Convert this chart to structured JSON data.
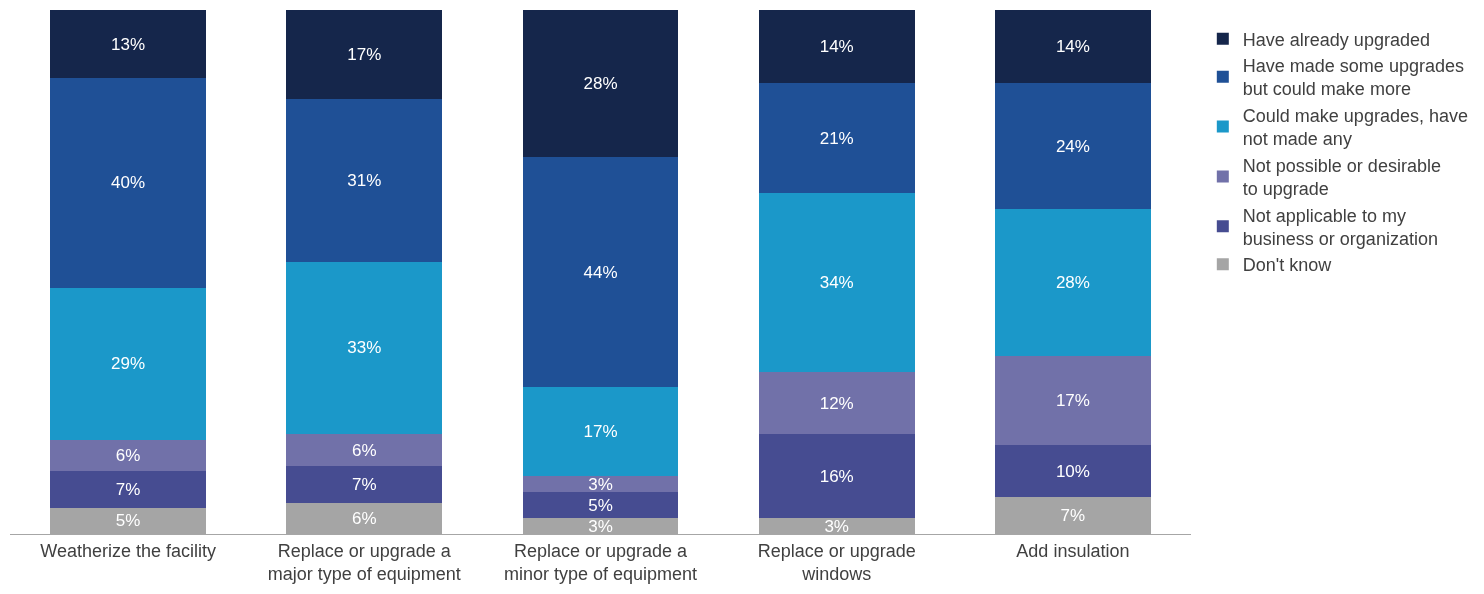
{
  "chart_data": {
    "type": "bar",
    "stacked": true,
    "legend": "right",
    "categories": [
      "Weatherize the facility",
      "Replace or upgrade a major type of equipment",
      "Replace or upgrade a minor type of equipment",
      "Replace or upgrade windows",
      "Add insulation"
    ],
    "series": [
      {
        "name": "Don't know",
        "color": "#a5a5a5",
        "values": [
          5,
          6,
          3,
          3,
          7
        ],
        "value_labels": [
          "5%",
          "6%",
          "3%",
          "3%",
          "7%"
        ]
      },
      {
        "name": "Not applicable to my business or organization",
        "color": "#464c91",
        "values": [
          7,
          7,
          5,
          16,
          10
        ],
        "value_labels": [
          "7%",
          "7%",
          "5%",
          "16%",
          "10%"
        ]
      },
      {
        "name": "Not possible or desirable to upgrade",
        "color": "#7171a9",
        "values": [
          6,
          6,
          3,
          12,
          17
        ],
        "value_labels": [
          "6%",
          "6%",
          "3%",
          "12%",
          "17%"
        ]
      },
      {
        "name": "Could make upgrades, have not made any",
        "color": "#1b98c9",
        "values": [
          29,
          33,
          17,
          34,
          28
        ],
        "value_labels": [
          "29%",
          "33%",
          "17%",
          "34%",
          "28%"
        ]
      },
      {
        "name": "Have made some upgrades but could make more",
        "color": "#1f5096",
        "values": [
          40,
          31,
          44,
          21,
          24
        ],
        "value_labels": [
          "40%",
          "31%",
          "44%",
          "21%",
          "24%"
        ]
      },
      {
        "name": "Have already upgraded",
        "color": "#15264b",
        "values": [
          13,
          17,
          28,
          14,
          14
        ],
        "value_labels": [
          "13%",
          "17%",
          "28%",
          "14%",
          "14%"
        ]
      }
    ]
  }
}
